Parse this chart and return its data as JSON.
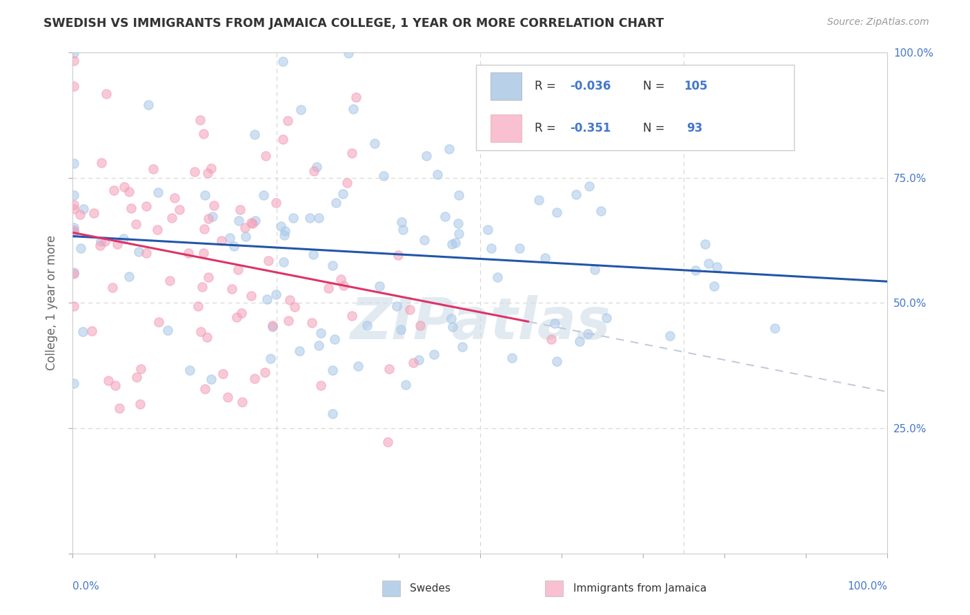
{
  "title": "SWEDISH VS IMMIGRANTS FROM JAMAICA COLLEGE, 1 YEAR OR MORE CORRELATION CHART",
  "source_text": "Source: ZipAtlas.com",
  "ylabel": "College, 1 year or more",
  "right_yticks": [
    "100.0%",
    "75.0%",
    "50.0%",
    "25.0%"
  ],
  "right_ytick_vals": [
    1.0,
    0.75,
    0.5,
    0.25
  ],
  "watermark": "ZIPatlas",
  "swedes_R": -0.036,
  "swedes_N": 105,
  "jamaica_R": -0.351,
  "jamaica_N": 93,
  "blue_color": "#a8c8e8",
  "pink_color": "#f4a0b8",
  "blue_line_color": "#2255aa",
  "pink_line_color": "#dd3366",
  "dash_line_color": "#c0c8d8",
  "title_color": "#333333",
  "axis_color": "#4477cc",
  "grid_color": "#d8d8d8",
  "background_color": "#ffffff",
  "xlim": [
    0.0,
    1.0
  ],
  "ylim": [
    0.0,
    1.0
  ],
  "legend_blue_color": "#b8d0e8",
  "legend_pink_color": "#f8c0d0",
  "bottom_legend": [
    "Swedes",
    "Immigrants from Jamaica"
  ],
  "bottom_legend_colors": [
    "#b8d0e8",
    "#f8c0d0"
  ]
}
